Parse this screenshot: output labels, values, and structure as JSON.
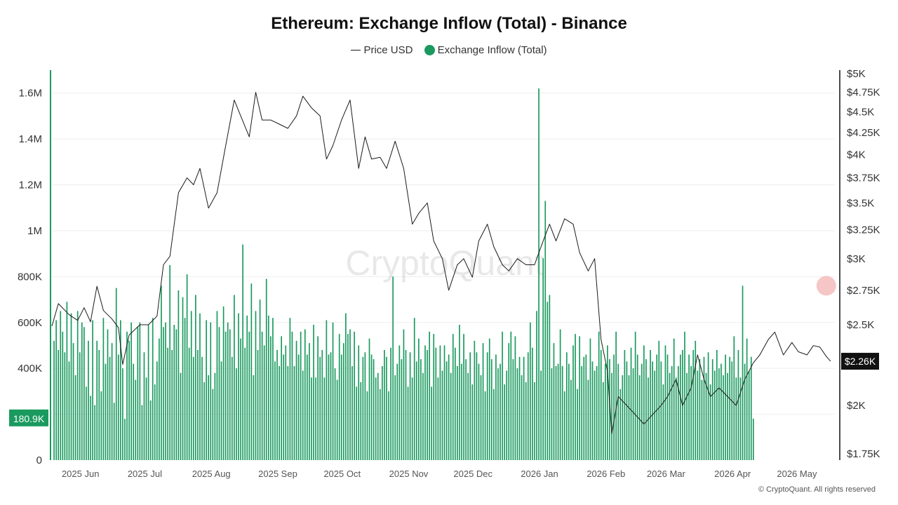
{
  "title": "Ethereum: Exchange Inflow (Total) - Binance",
  "legend": {
    "price_label": "Price USD",
    "inflow_label": "Exchange Inflow (Total)"
  },
  "watermark": "CryptoQuant",
  "copyright": "© CryptoQuant. All rights reserved",
  "colors": {
    "inflow": "#1a9a5e",
    "price": "#1a1a1a",
    "grid": "#eeeeee",
    "latest_highlight": "#f3b3b3",
    "price_tag_bg": "#111111"
  },
  "chart_data": {
    "type": "bar",
    "left_axis": {
      "ylim": [
        0,
        1700000
      ],
      "ticks": [
        0,
        200000,
        400000,
        600000,
        800000,
        1000000,
        1200000,
        1400000,
        1600000
      ],
      "tick_labels": [
        "0",
        "",
        "400K",
        "600K",
        "800K",
        "1M",
        "1.2M",
        "1.4M",
        "1.6M"
      ],
      "current_value_label": "180.9K"
    },
    "right_axis": {
      "scale": "log",
      "ylim": [
        1720,
        5050
      ],
      "ticks": [
        1750,
        2000,
        2500,
        2750,
        3000,
        3250,
        3500,
        3750,
        4000,
        4250,
        4500,
        4750,
        5000
      ],
      "tick_labels": [
        "$1.75K",
        "$2K",
        "$2.5K",
        "$2.75K",
        "$3K",
        "$3.25K",
        "$3.5K",
        "$3.75K",
        "$4K",
        "$4.25K",
        "$4.5K",
        "$4.75K",
        "$5K"
      ],
      "current_value_label": "$2.26K"
    },
    "x_axis": {
      "range": [
        "2025-05-20",
        "2026-05-20"
      ],
      "tick_dates": [
        "2025-06-01",
        "2025-07-01",
        "2025-08-01",
        "2025-09-01",
        "2025-10-01",
        "2025-11-01",
        "2025-12-01",
        "2026-01-01",
        "2026-02-01",
        "2026-03-01",
        "2026-04-01",
        "2026-05-01"
      ],
      "tick_labels": [
        "2025 Jun",
        "2025 Jul",
        "2025 Aug",
        "2025 Sep",
        "2025 Oct",
        "2025 Nov",
        "2025 Dec",
        "2026 Jan",
        "2026 Feb",
        "2026 Mar",
        "2026 Apr",
        "2026 May"
      ]
    },
    "series": [
      {
        "name": "Exchange Inflow (Total)",
        "type": "bar",
        "axis": "left",
        "start_date": "2025-05-21",
        "end_date": "2026-05-18",
        "approximate_daily_values": [
          520000,
          610000,
          480000,
          650000,
          560000,
          470000,
          690000,
          430000,
          640000,
          510000,
          370000,
          650000,
          470000,
          600000,
          580000,
          320000,
          520000,
          280000,
          610000,
          240000,
          520000,
          480000,
          300000,
          620000,
          420000,
          570000,
          450000,
          510000,
          250000,
          750000,
          460000,
          610000,
          400000,
          180000,
          560000,
          520000,
          600000,
          420000,
          350000,
          580000,
          600000,
          240000,
          470000,
          360000,
          590000,
          260000,
          620000,
          330000,
          430000,
          530000,
          760000,
          580000,
          600000,
          490000,
          850000,
          480000,
          590000,
          570000,
          740000,
          380000,
          710000,
          620000,
          810000,
          490000,
          650000,
          450000,
          720000,
          480000,
          640000,
          450000,
          340000,
          610000,
          370000,
          600000,
          310000,
          380000,
          650000,
          580000,
          430000,
          670000,
          560000,
          600000,
          570000,
          450000,
          720000,
          400000,
          640000,
          530000,
          940000,
          490000,
          630000,
          560000,
          770000,
          370000,
          650000,
          480000,
          700000,
          560000,
          500000,
          790000,
          630000,
          540000,
          620000,
          430000,
          480000,
          410000,
          540000,
          460000,
          500000,
          410000,
          620000,
          560000,
          410000,
          520000,
          460000,
          560000,
          390000,
          570000,
          460000,
          510000,
          360000,
          590000,
          360000,
          540000,
          450000,
          480000,
          360000,
          610000,
          460000,
          470000,
          600000,
          400000,
          350000,
          550000,
          460000,
          510000,
          640000,
          550000,
          570000,
          410000,
          560000,
          320000,
          500000,
          340000,
          450000,
          470000,
          300000,
          530000,
          460000,
          440000,
          360000,
          380000,
          310000,
          410000,
          480000,
          450000,
          300000,
          490000,
          800000,
          370000,
          420000,
          500000,
          440000,
          570000,
          480000,
          320000,
          470000,
          360000,
          620000,
          430000,
          530000,
          440000,
          380000,
          500000,
          480000,
          560000,
          320000,
          550000,
          490000,
          360000,
          500000,
          390000,
          500000,
          430000,
          460000,
          380000,
          550000,
          490000,
          410000,
          590000,
          420000,
          550000,
          440000,
          380000,
          470000,
          330000,
          520000,
          470000,
          420000,
          370000,
          510000,
          300000,
          470000,
          530000,
          440000,
          310000,
          460000,
          400000,
          420000,
          560000,
          330000,
          390000,
          510000,
          560000,
          440000,
          540000,
          400000,
          450000,
          370000,
          450000,
          340000,
          470000,
          600000,
          490000,
          340000,
          650000,
          1620000,
          390000,
          880000,
          1130000,
          690000,
          720000,
          400000,
          510000,
          410000,
          420000,
          570000,
          410000,
          300000,
          470000,
          420000,
          350000,
          500000,
          550000,
          310000,
          540000,
          410000,
          450000,
          460000,
          350000,
          530000,
          430000,
          390000,
          410000,
          560000,
          480000,
          340000,
          420000,
          500000,
          440000,
          380000,
          460000,
          560000,
          420000,
          310000,
          370000,
          480000,
          430000,
          370000,
          490000,
          400000,
          560000,
          460000,
          370000,
          420000,
          500000,
          440000,
          360000,
          480000,
          430000,
          390000,
          460000,
          520000,
          430000,
          330000,
          500000,
          460000,
          380000,
          410000,
          530000,
          360000,
          410000,
          460000,
          480000,
          560000,
          380000,
          460000,
          410000,
          480000,
          520000,
          390000,
          440000,
          350000,
          450000,
          380000,
          470000,
          330000,
          440000,
          390000,
          480000,
          400000,
          420000,
          370000,
          460000,
          380000,
          450000,
          430000,
          540000,
          360000,
          480000,
          360000,
          760000,
          420000,
          530000,
          390000,
          450000,
          180900
        ]
      },
      {
        "name": "Price USD",
        "type": "line",
        "axis": "right",
        "points": [
          [
            "2025-05-20",
            2490
          ],
          [
            "2025-05-23",
            2650
          ],
          [
            "2025-05-28",
            2570
          ],
          [
            "2025-06-01",
            2530
          ],
          [
            "2025-06-04",
            2620
          ],
          [
            "2025-06-07",
            2520
          ],
          [
            "2025-06-10",
            2780
          ],
          [
            "2025-06-13",
            2600
          ],
          [
            "2025-06-17",
            2540
          ],
          [
            "2025-06-20",
            2480
          ],
          [
            "2025-06-22",
            2240
          ],
          [
            "2025-06-25",
            2430
          ],
          [
            "2025-06-30",
            2500
          ],
          [
            "2025-07-04",
            2500
          ],
          [
            "2025-07-08",
            2560
          ],
          [
            "2025-07-11",
            2950
          ],
          [
            "2025-07-14",
            3020
          ],
          [
            "2025-07-18",
            3600
          ],
          [
            "2025-07-22",
            3750
          ],
          [
            "2025-07-25",
            3680
          ],
          [
            "2025-07-28",
            3850
          ],
          [
            "2025-08-01",
            3450
          ],
          [
            "2025-08-05",
            3600
          ],
          [
            "2025-08-09",
            4100
          ],
          [
            "2025-08-13",
            4650
          ],
          [
            "2025-08-16",
            4450
          ],
          [
            "2025-08-20",
            4200
          ],
          [
            "2025-08-23",
            4750
          ],
          [
            "2025-08-26",
            4400
          ],
          [
            "2025-08-30",
            4400
          ],
          [
            "2025-09-03",
            4350
          ],
          [
            "2025-09-07",
            4300
          ],
          [
            "2025-09-11",
            4450
          ],
          [
            "2025-09-14",
            4700
          ],
          [
            "2025-09-18",
            4550
          ],
          [
            "2025-09-22",
            4450
          ],
          [
            "2025-09-25",
            3950
          ],
          [
            "2025-09-28",
            4100
          ],
          [
            "2025-10-02",
            4400
          ],
          [
            "2025-10-06",
            4650
          ],
          [
            "2025-10-10",
            3850
          ],
          [
            "2025-10-13",
            4200
          ],
          [
            "2025-10-16",
            3950
          ],
          [
            "2025-10-20",
            3970
          ],
          [
            "2025-10-23",
            3850
          ],
          [
            "2025-10-27",
            4150
          ],
          [
            "2025-10-31",
            3850
          ],
          [
            "2025-11-04",
            3300
          ],
          [
            "2025-11-07",
            3400
          ],
          [
            "2025-11-11",
            3500
          ],
          [
            "2025-11-14",
            3150
          ],
          [
            "2025-11-18",
            3000
          ],
          [
            "2025-11-21",
            2750
          ],
          [
            "2025-11-25",
            2950
          ],
          [
            "2025-11-28",
            3000
          ],
          [
            "2025-12-02",
            2850
          ],
          [
            "2025-12-05",
            3150
          ],
          [
            "2025-12-09",
            3300
          ],
          [
            "2025-12-12",
            3100
          ],
          [
            "2025-12-16",
            2950
          ],
          [
            "2025-12-19",
            2900
          ],
          [
            "2025-12-23",
            3000
          ],
          [
            "2025-12-27",
            2950
          ],
          [
            "2025-12-31",
            2950
          ],
          [
            "2026-01-04",
            3150
          ],
          [
            "2026-01-07",
            3300
          ],
          [
            "2026-01-10",
            3150
          ],
          [
            "2026-01-14",
            3350
          ],
          [
            "2026-01-18",
            3300
          ],
          [
            "2026-01-21",
            3050
          ],
          [
            "2026-01-25",
            2900
          ],
          [
            "2026-01-28",
            3000
          ],
          [
            "2026-01-31",
            2400
          ],
          [
            "2026-02-03",
            2200
          ],
          [
            "2026-02-05",
            1850
          ],
          [
            "2026-02-08",
            2050
          ],
          [
            "2026-02-12",
            2000
          ],
          [
            "2026-02-16",
            1950
          ],
          [
            "2026-02-20",
            1900
          ],
          [
            "2026-02-24",
            1950
          ],
          [
            "2026-02-28",
            2000
          ],
          [
            "2026-03-03",
            2050
          ],
          [
            "2026-03-07",
            2150
          ],
          [
            "2026-03-10",
            2000
          ],
          [
            "2026-03-14",
            2100
          ],
          [
            "2026-03-17",
            2300
          ],
          [
            "2026-03-20",
            2150
          ],
          [
            "2026-03-23",
            2050
          ],
          [
            "2026-03-27",
            2100
          ],
          [
            "2026-03-31",
            2050
          ],
          [
            "2026-04-04",
            2000
          ],
          [
            "2026-04-08",
            2150
          ],
          [
            "2026-04-12",
            2250
          ],
          [
            "2026-04-15",
            2300
          ],
          [
            "2026-04-19",
            2400
          ],
          [
            "2026-04-22",
            2450
          ],
          [
            "2026-04-26",
            2300
          ],
          [
            "2026-04-30",
            2380
          ],
          [
            "2026-05-03",
            2320
          ],
          [
            "2026-05-07",
            2300
          ],
          [
            "2026-05-10",
            2360
          ],
          [
            "2026-05-13",
            2350
          ],
          [
            "2026-05-16",
            2290
          ],
          [
            "2026-05-18",
            2260
          ]
        ]
      }
    ],
    "highlight": {
      "date": "2026-05-16",
      "value": 760000
    },
    "grid": true,
    "legend_position": "top-center"
  }
}
